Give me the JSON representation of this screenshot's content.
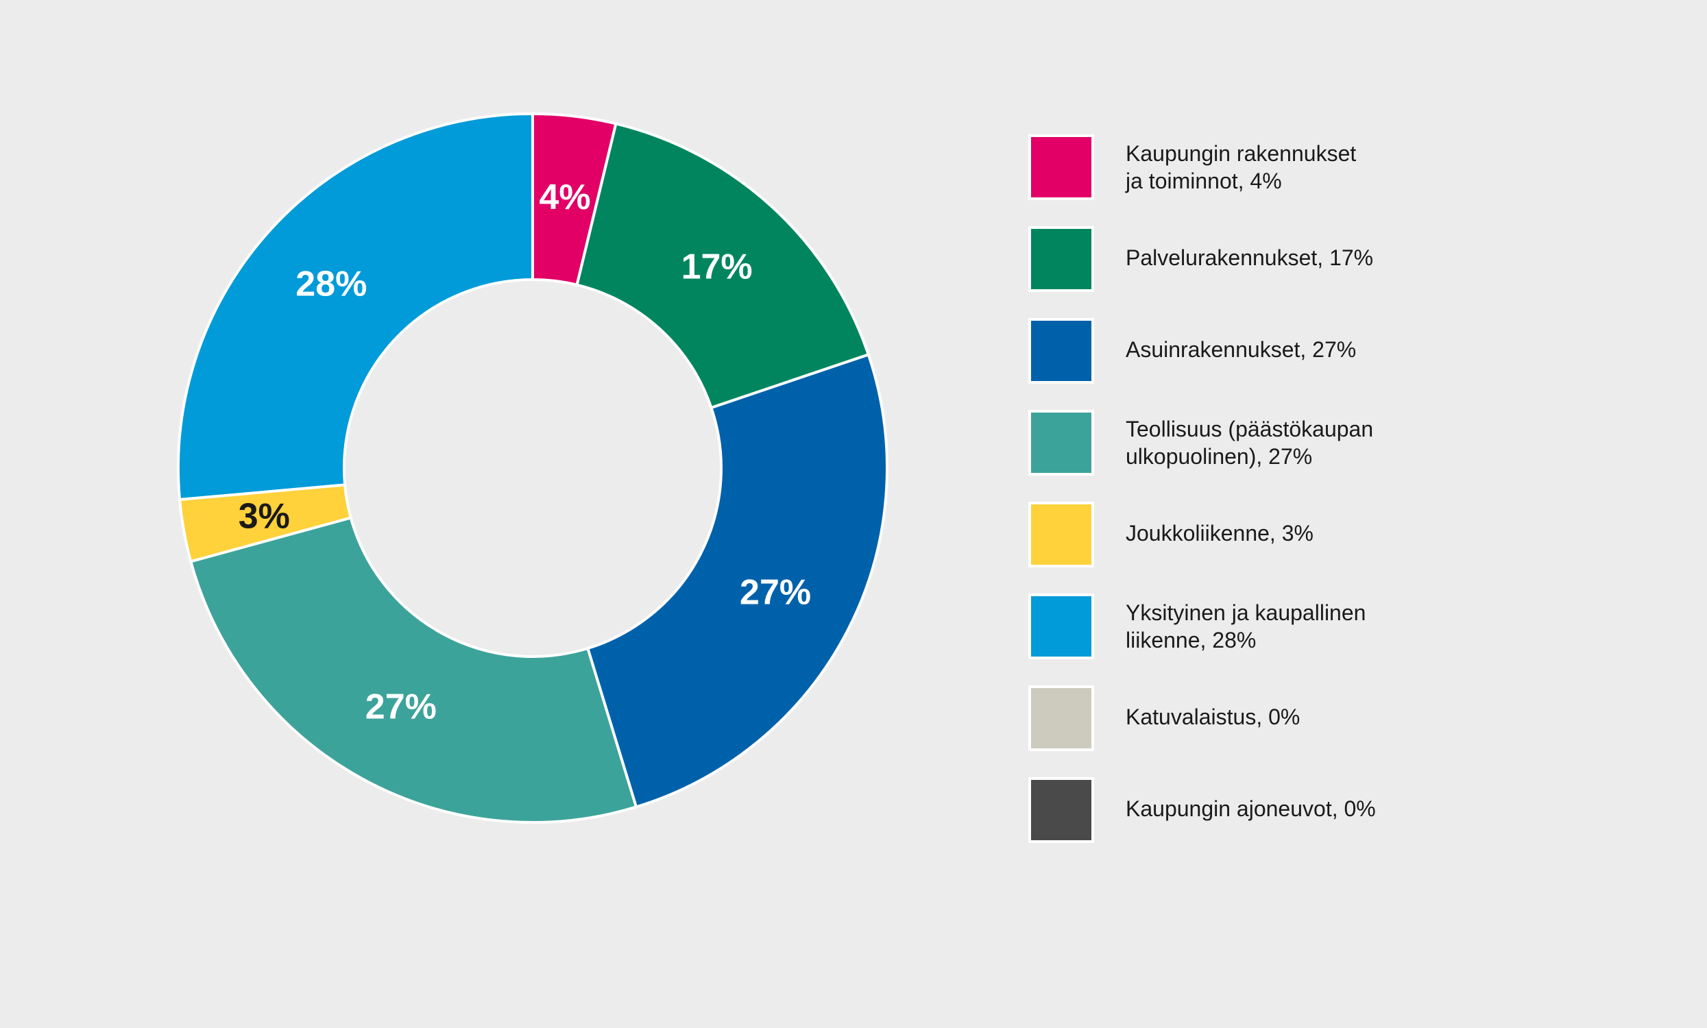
{
  "chart_data": {
    "type": "pie",
    "donut": true,
    "legend_placement": "right",
    "slices": [
      {
        "label": "Kaupungin rakennukset\nja toiminnot, 4%",
        "value": 4,
        "data_label": "4%",
        "color": "#e20066",
        "label_color": "#ffffff"
      },
      {
        "label": "Palvelurakennukset, 17%",
        "value": 17,
        "data_label": "17%",
        "color": "#00855f",
        "label_color": "#ffffff"
      },
      {
        "label": "Asuinrakennukset, 27%",
        "value": 27,
        "data_label": "27%",
        "color": "#0061ab",
        "label_color": "#ffffff"
      },
      {
        "label": "Teollisuus (päästökaupan\nulkopuolinen), 27%",
        "value": 27,
        "data_label": "27%",
        "color": "#3ca39a",
        "label_color": "#ffffff"
      },
      {
        "label": "Joukkoliikenne, 3%",
        "value": 3,
        "data_label": "3%",
        "color": "#ffd13a",
        "label_color": "#1a1a1a"
      },
      {
        "label": "Yksityinen ja kaupallinen\nliikenne, 28%",
        "value": 28,
        "data_label": "28%",
        "color": "#009bd8",
        "label_color": "#ffffff"
      },
      {
        "label": "Katuvalaistus, 0%",
        "value": 0,
        "data_label": "",
        "color": "#cccbbe",
        "label_color": "#1a1a1a"
      },
      {
        "label": "Kaupungin ajoneuvot, 0%",
        "value": 0,
        "data_label": "",
        "color": "#4a4a4a",
        "label_color": "#ffffff"
      }
    ]
  }
}
